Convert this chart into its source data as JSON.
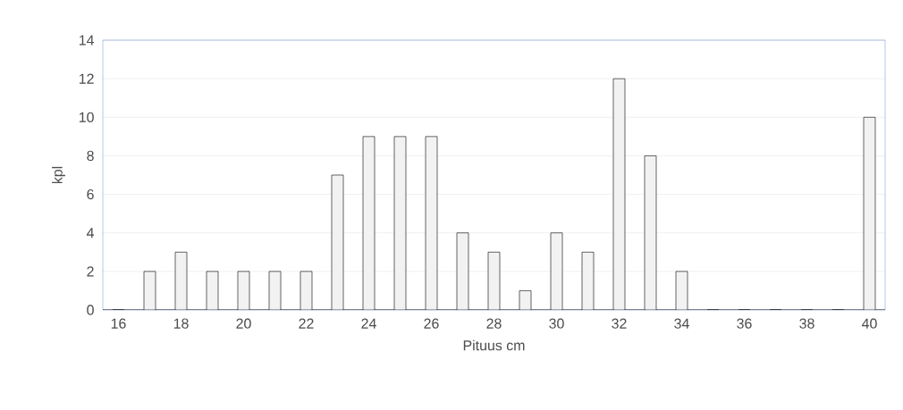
{
  "chart_data": {
    "type": "bar",
    "xlabel": "Pituus cm",
    "ylabel": "kpl",
    "categories": [
      "16",
      null,
      "18",
      null,
      "20",
      null,
      "22",
      null,
      "24",
      null,
      "26",
      null,
      "28",
      null,
      "30",
      null,
      "32",
      null,
      "34",
      null,
      "36",
      null,
      "38",
      null,
      "40"
    ],
    "values": [
      0,
      2,
      3,
      2,
      2,
      2,
      2,
      7,
      9,
      9,
      9,
      4,
      3,
      1,
      4,
      3,
      12,
      8,
      2,
      0,
      0,
      0,
      0,
      0,
      10
    ],
    "color": "#f2f2f2",
    "ylim": [
      0,
      14
    ],
    "yticks": [
      0,
      2,
      4,
      6,
      8,
      10,
      12,
      14
    ],
    "grid": "y"
  }
}
